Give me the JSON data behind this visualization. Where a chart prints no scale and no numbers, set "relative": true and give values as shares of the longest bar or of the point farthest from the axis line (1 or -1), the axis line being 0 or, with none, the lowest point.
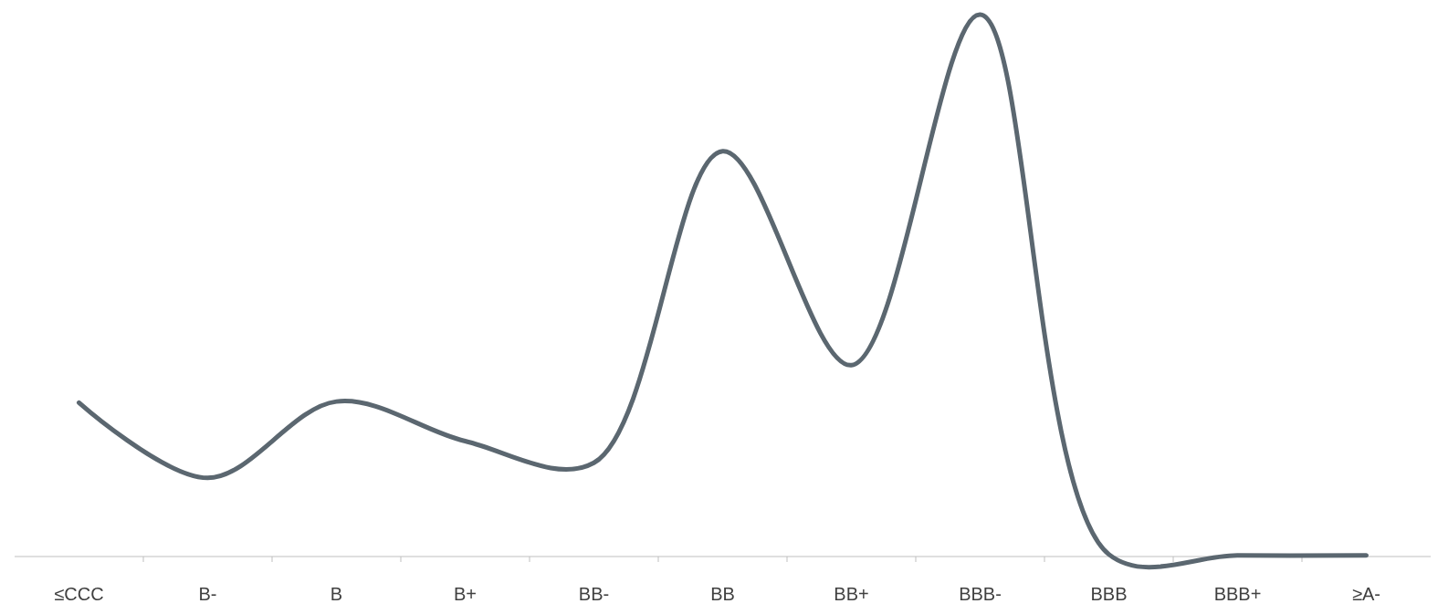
{
  "chart_data": {
    "type": "line",
    "relative": true,
    "categories": [
      "≤CCC",
      "B-",
      "B",
      "B+",
      "BB-",
      "BB",
      "BB+",
      "BBB-",
      "BBB",
      "BBB+",
      "≥A-"
    ],
    "series": [
      {
        "color": "#5b6770",
        "values": [
          0.284,
          0.145,
          0.286,
          0.213,
          0.173,
          0.748,
          0.353,
          1,
          0.004,
          0.002,
          0.002
        ]
      }
    ]
  }
}
